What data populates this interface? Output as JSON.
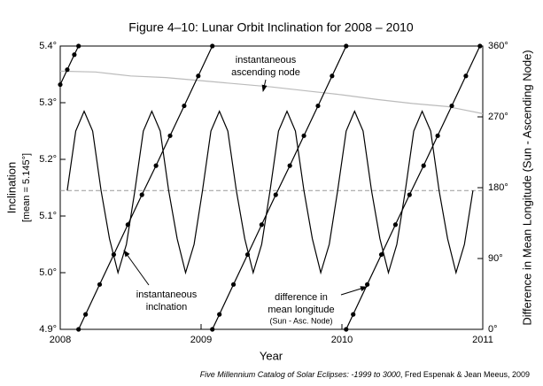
{
  "chart_data": {
    "type": "line",
    "title": "Figure 4–10: Lunar Orbit Inclination for 2008 – 2010",
    "x_label": "Year",
    "y_label": [
      "Inclination",
      "[mean = 5.145°]"
    ],
    "y2_label": "Difference in Mean Longitude (Sun - Ascending Node)",
    "footer": [
      "Five Millennium Catalog of Solar Eclipses: -1999 to 3000",
      ", Fred Espenak & Jean Meeus, 2009"
    ],
    "xlim": [
      2008,
      2011
    ],
    "xticks": [
      2008,
      2009,
      2010,
      2011
    ],
    "ylim": [
      4.9,
      5.4
    ],
    "yticks": [
      {
        "value": 4.9,
        "label": "4.9°"
      },
      {
        "value": 5.0,
        "label": "5.0°"
      },
      {
        "value": 5.1,
        "label": "5.1°"
      },
      {
        "value": 5.2,
        "label": "5.2°"
      },
      {
        "value": 5.3,
        "label": "5.3°"
      },
      {
        "value": 5.4,
        "label": "5.4°"
      }
    ],
    "y2lim": [
      0,
      360
    ],
    "y2ticks": [
      {
        "value": 0,
        "label": "0°"
      },
      {
        "value": 90,
        "label": "90°"
      },
      {
        "value": 180,
        "label": "180°"
      },
      {
        "value": 270,
        "label": "270°"
      },
      {
        "value": 360,
        "label": "360°"
      }
    ],
    "hline": 5.145,
    "series": [
      {
        "color": "#000000",
        "markers": false,
        "x": [
          2008.05,
          2008.11,
          2008.17,
          2008.23,
          2008.29,
          2008.35,
          2008.41,
          2008.47,
          2008.53,
          2008.59,
          2008.65,
          2008.71,
          2008.77,
          2008.83,
          2008.89,
          2008.95,
          2009.01,
          2009.07,
          2009.13,
          2009.19,
          2009.25,
          2009.31,
          2009.37,
          2009.43,
          2009.49,
          2009.55,
          2009.61,
          2009.67,
          2009.73,
          2009.79,
          2009.85,
          2009.91,
          2009.97,
          2010.03,
          2010.09,
          2010.15,
          2010.21,
          2010.27,
          2010.33,
          2010.39,
          2010.45,
          2010.51,
          2010.57,
          2010.63,
          2010.69,
          2010.75,
          2010.81,
          2010.87,
          2010.93
        ],
        "values": [
          5.145,
          5.25,
          5.285,
          5.25,
          5.145,
          5.06,
          5.0,
          5.05,
          5.145,
          5.25,
          5.285,
          5.25,
          5.145,
          5.06,
          5.0,
          5.05,
          5.145,
          5.25,
          5.285,
          5.25,
          5.145,
          5.06,
          5.0,
          5.05,
          5.145,
          5.25,
          5.285,
          5.25,
          5.145,
          5.06,
          5.0,
          5.05,
          5.145,
          5.25,
          5.285,
          5.25,
          5.145,
          5.06,
          5.0,
          5.05,
          5.145,
          5.25,
          5.285,
          5.25,
          5.145,
          5.06,
          5.0,
          5.05,
          5.145
        ]
      },
      {
        "color": "#bbbbbb",
        "axis": "y2",
        "markers": false,
        "x": [
          2008,
          2008.25,
          2008.5,
          2008.75,
          2009,
          2009.25,
          2009.5,
          2009.75,
          2010,
          2010.25,
          2010.5,
          2010.75,
          2011
        ],
        "values": [
          328,
          327,
          322,
          320,
          316,
          312,
          308,
          303,
          298,
          292,
          287,
          283,
          274
        ]
      },
      {
        "color": "#000000",
        "axis": "y2",
        "markers": true,
        "x": [
          2008.0,
          2008.05,
          2008.1,
          2008.13,
          2008.13,
          2008.13,
          2008.18,
          2008.28,
          2008.38,
          2008.48,
          2008.58,
          2008.68,
          2008.78,
          2008.88,
          2008.98,
          2009.08,
          2009.08,
          2009.08,
          2009.13,
          2009.23,
          2009.33,
          2009.43,
          2009.53,
          2009.63,
          2009.73,
          2009.83,
          2009.93,
          2010.03,
          2010.03,
          2010.03,
          2010.08,
          2010.18,
          2010.28,
          2010.38,
          2010.48,
          2010.58,
          2010.68,
          2010.78,
          2010.88,
          2010.98
        ],
        "values": [
          311,
          330,
          349,
          360,
          null,
          0,
          19,
          57,
          95,
          133,
          171,
          208,
          246,
          284,
          322,
          360,
          null,
          0,
          19,
          57,
          95,
          133,
          171,
          208,
          246,
          284,
          322,
          360,
          null,
          0,
          19,
          57,
          95,
          133,
          171,
          208,
          246,
          284,
          322,
          360
        ]
      }
    ],
    "annotations": [
      [
        "instantaneous",
        "ascending node"
      ],
      [
        "instantaneous",
        "inclnation"
      ],
      [
        "difference in",
        "mean longitude",
        "(Sun - Asc. Node)"
      ]
    ]
  }
}
